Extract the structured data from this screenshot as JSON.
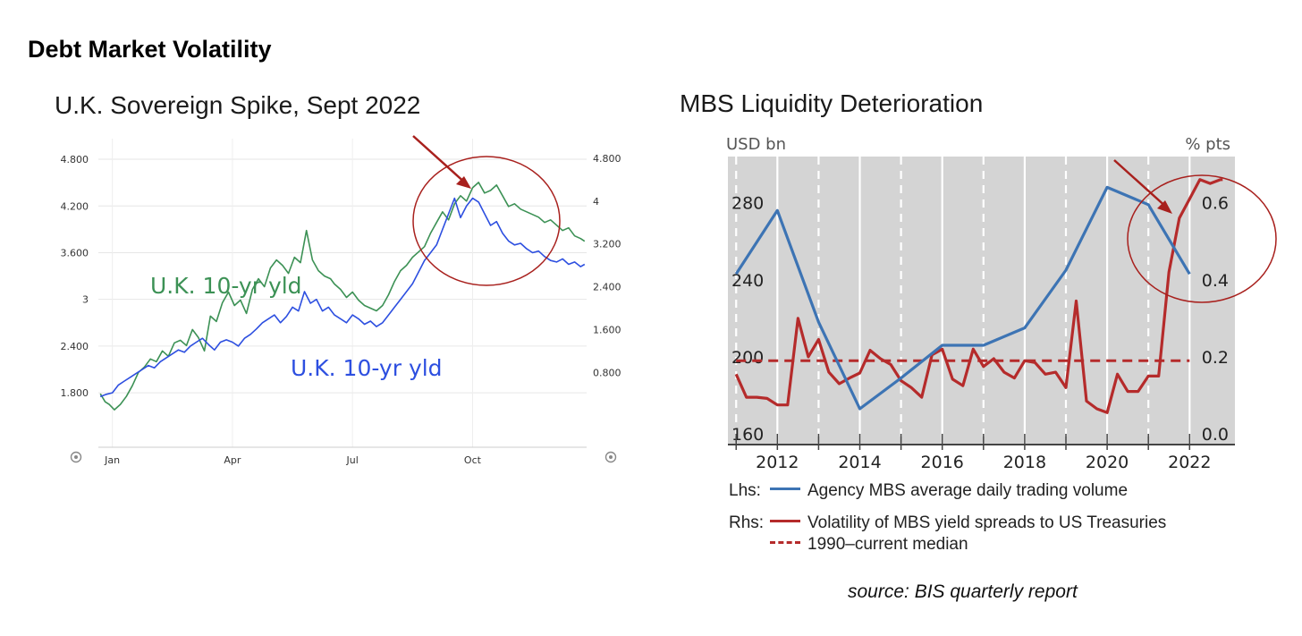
{
  "page": {
    "title": "Debt Market Volatility",
    "source": "source: BIS quarterly report"
  },
  "colors": {
    "uk_green": "#3c9155",
    "uk_blue": "#2d4fe0",
    "mbs_blue": "#3d74b4",
    "mbs_red": "#b52b2b",
    "highlight": "#a8201d",
    "panel_bg": "#d4d4d4"
  },
  "chart_data": [
    {
      "id": "uk",
      "type": "line",
      "title": "U.K. Sovereign Spike, Sept 2022",
      "x_labels": [
        "Jan",
        "Apr",
        "Jul",
        "Oct"
      ],
      "x_label_months": [
        1,
        4,
        7,
        10
      ],
      "xlim": [
        0.65,
        12.85
      ],
      "left_axis": {
        "ticks": [
          "1.800",
          "2.400",
          "3",
          "3.600",
          "4.200",
          "4.800"
        ],
        "values": [
          1.8,
          2.4,
          3.0,
          3.6,
          4.2,
          4.8
        ],
        "ylim": [
          1.1,
          4.95
        ]
      },
      "right_axis": {
        "ticks": [
          "0.800",
          "1.600",
          "2.400",
          "3.200",
          "4",
          "4.800"
        ],
        "values": [
          0.8,
          1.6,
          2.4,
          3.2,
          4.0,
          4.8
        ],
        "ylim": [
          -0.6,
          5.0
        ]
      },
      "series": [
        {
          "name": "U.K. 10-yr yld",
          "axis": "right",
          "color": "#3c9155",
          "x": [
            0.7,
            0.82,
            0.92,
            1.05,
            1.2,
            1.35,
            1.5,
            1.65,
            1.8,
            1.95,
            2.1,
            2.25,
            2.4,
            2.55,
            2.7,
            2.85,
            3.0,
            3.15,
            3.3,
            3.45,
            3.6,
            3.75,
            3.9,
            4.05,
            4.2,
            4.35,
            4.5,
            4.65,
            4.8,
            4.95,
            5.1,
            5.25,
            5.4,
            5.55,
            5.7,
            5.85,
            6.0,
            6.15,
            6.3,
            6.45,
            6.55,
            6.7,
            6.85,
            7.0,
            7.15,
            7.3,
            7.45,
            7.6,
            7.75,
            7.9,
            8.05,
            8.2,
            8.35,
            8.5,
            8.65,
            8.8,
            8.95,
            9.1,
            9.25,
            9.4,
            9.55,
            9.7,
            9.85,
            10.0,
            10.15,
            10.3,
            10.45,
            10.6,
            10.75,
            10.9,
            11.05,
            11.2,
            11.35,
            11.5,
            11.65,
            11.8,
            11.95,
            12.1,
            12.25,
            12.4,
            12.55,
            12.7,
            12.8
          ],
          "y": [
            0.4,
            0.25,
            0.2,
            0.1,
            0.2,
            0.35,
            0.55,
            0.8,
            0.9,
            1.05,
            1.0,
            1.2,
            1.1,
            1.35,
            1.4,
            1.3,
            1.6,
            1.45,
            1.2,
            1.85,
            1.75,
            2.1,
            2.3,
            2.05,
            2.15,
            1.9,
            2.35,
            2.55,
            2.4,
            2.75,
            2.9,
            2.8,
            2.65,
            2.95,
            2.85,
            3.45,
            2.9,
            2.7,
            2.6,
            2.55,
            2.45,
            2.35,
            2.2,
            2.3,
            2.15,
            2.05,
            2.0,
            1.95,
            2.05,
            2.25,
            2.5,
            2.7,
            2.8,
            2.95,
            3.05,
            3.15,
            3.4,
            3.6,
            3.8,
            3.65,
            3.95,
            4.1,
            4.0,
            4.25,
            4.35,
            4.15,
            4.2,
            4.3,
            4.1,
            3.9,
            3.95,
            3.85,
            3.8,
            3.75,
            3.7,
            3.6,
            3.65,
            3.55,
            3.45,
            3.5,
            3.35,
            3.3,
            3.25
          ]
        },
        {
          "name": "U.K. 10-yr yld",
          "axis": "left",
          "color": "#2d4fe0",
          "x": [
            0.7,
            0.85,
            1.0,
            1.15,
            1.3,
            1.45,
            1.6,
            1.75,
            1.9,
            2.05,
            2.2,
            2.35,
            2.5,
            2.65,
            2.8,
            2.95,
            3.1,
            3.25,
            3.4,
            3.55,
            3.7,
            3.85,
            4.0,
            4.15,
            4.3,
            4.45,
            4.6,
            4.75,
            4.9,
            5.05,
            5.2,
            5.35,
            5.5,
            5.65,
            5.8,
            5.95,
            6.1,
            6.25,
            6.4,
            6.55,
            6.7,
            6.85,
            7.0,
            7.15,
            7.3,
            7.45,
            7.6,
            7.75,
            7.9,
            8.05,
            8.2,
            8.35,
            8.5,
            8.65,
            8.8,
            8.95,
            9.1,
            9.25,
            9.4,
            9.55,
            9.7,
            9.85,
            10.0,
            10.15,
            10.3,
            10.45,
            10.6,
            10.75,
            10.9,
            11.05,
            11.2,
            11.35,
            11.5,
            11.65,
            11.8,
            11.95,
            12.1,
            12.25,
            12.4,
            12.55,
            12.7,
            12.8
          ],
          "y": [
            1.75,
            1.78,
            1.8,
            1.9,
            1.95,
            2.0,
            2.05,
            2.1,
            2.15,
            2.12,
            2.2,
            2.25,
            2.3,
            2.35,
            2.32,
            2.4,
            2.45,
            2.5,
            2.42,
            2.35,
            2.45,
            2.48,
            2.45,
            2.4,
            2.5,
            2.55,
            2.62,
            2.7,
            2.75,
            2.8,
            2.7,
            2.78,
            2.9,
            2.85,
            3.1,
            2.95,
            3.0,
            2.85,
            2.9,
            2.8,
            2.75,
            2.7,
            2.8,
            2.75,
            2.68,
            2.72,
            2.65,
            2.7,
            2.8,
            2.9,
            3.0,
            3.1,
            3.2,
            3.35,
            3.5,
            3.6,
            3.7,
            3.9,
            4.1,
            4.3,
            4.05,
            4.2,
            4.3,
            4.25,
            4.1,
            3.95,
            4.0,
            3.85,
            3.75,
            3.7,
            3.72,
            3.65,
            3.6,
            3.62,
            3.55,
            3.5,
            3.48,
            3.52,
            3.45,
            3.48,
            3.42,
            3.45
          ]
        }
      ]
    },
    {
      "id": "mbs",
      "type": "line",
      "title": "MBS Liquidity Deterioration",
      "ylabel_left": "USD bn",
      "ylabel_right": "% pts",
      "x_ticks": [
        "2012",
        "2014",
        "2016",
        "2018",
        "2020",
        "2022"
      ],
      "x_tick_values": [
        2012,
        2014,
        2016,
        2018,
        2020,
        2022
      ],
      "xlim": [
        2010.8,
        2023.1
      ],
      "left_axis": {
        "ticks": [
          "160",
          "200",
          "240",
          "280"
        ],
        "values": [
          160,
          200,
          240,
          280
        ],
        "ylim": [
          160,
          304
        ]
      },
      "right_axis": {
        "ticks": [
          "0.0",
          "0.2",
          "0.4",
          "0.6"
        ],
        "values": [
          0.0,
          0.2,
          0.4,
          0.6
        ],
        "ylim": [
          0.0,
          0.72
        ]
      },
      "legend": [
        {
          "side": "Lhs:",
          "label": "Agency MBS average daily trading volume",
          "style": "solid",
          "color": "#3d74b4"
        },
        {
          "side": "Rhs:",
          "label": "Volatility of MBS yield spreads to US Treasuries",
          "style": "solid",
          "color": "#b52b2b"
        },
        {
          "side": "",
          "label": "1990–current median",
          "style": "dashed",
          "color": "#b52b2b"
        }
      ],
      "series": [
        {
          "name": "Agency MBS average daily trading volume",
          "axis": "left",
          "color": "#3d74b4",
          "x": [
            2011,
            2012,
            2013,
            2014,
            2015,
            2016,
            2017,
            2018,
            2019,
            2020,
            2021,
            2022
          ],
          "y": [
            243,
            276,
            218,
            173,
            189,
            206,
            206,
            215,
            245,
            288,
            279,
            243
          ]
        },
        {
          "name": "Volatility of MBS yield spreads to US Treasuries",
          "axis": "right",
          "color": "#b52b2b",
          "x": [
            2011.0,
            2011.25,
            2011.5,
            2011.75,
            2012.0,
            2012.25,
            2012.5,
            2012.75,
            2013.0,
            2013.25,
            2013.5,
            2013.75,
            2014.0,
            2014.25,
            2014.5,
            2014.75,
            2015.0,
            2015.25,
            2015.5,
            2015.75,
            2016.0,
            2016.25,
            2016.5,
            2016.75,
            2017.0,
            2017.25,
            2017.5,
            2017.75,
            2018.0,
            2018.25,
            2018.5,
            2018.75,
            2019.0,
            2019.25,
            2019.5,
            2019.75,
            2020.0,
            2020.25,
            2020.5,
            2020.75,
            2021.0,
            2021.25,
            2021.5,
            2021.75,
            2022.0,
            2022.25,
            2022.5,
            2022.75,
            2023.0
          ],
          "y": [
            0.155,
            0.095,
            0.095,
            0.092,
            0.075,
            0.075,
            0.3,
            0.2,
            0.245,
            0.16,
            0.13,
            0.145,
            0.158,
            0.217,
            0.195,
            0.18,
            0.138,
            0.12,
            0.095,
            0.205,
            0.22,
            0.142,
            0.125,
            0.22,
            0.175,
            0.195,
            0.16,
            0.145,
            0.19,
            0.185,
            0.155,
            0.16,
            0.12,
            0.345,
            0.085,
            0.065,
            0.055,
            0.155,
            0.11,
            0.11,
            0.15,
            0.15,
            0.42,
            0.56,
            0.61,
            0.66,
            0.65,
            0.66,
            0.66
          ]
        },
        {
          "name": "1990–current median",
          "axis": "right",
          "style": "dashed",
          "color": "#b52b2b",
          "x": [
            2011,
            2022
          ],
          "y": [
            0.19,
            0.19
          ]
        }
      ]
    }
  ],
  "annotations": {
    "uk_series_label_green": "U.K. 10-yr yld",
    "uk_series_label_blue": "U.K. 10-yr yld"
  }
}
